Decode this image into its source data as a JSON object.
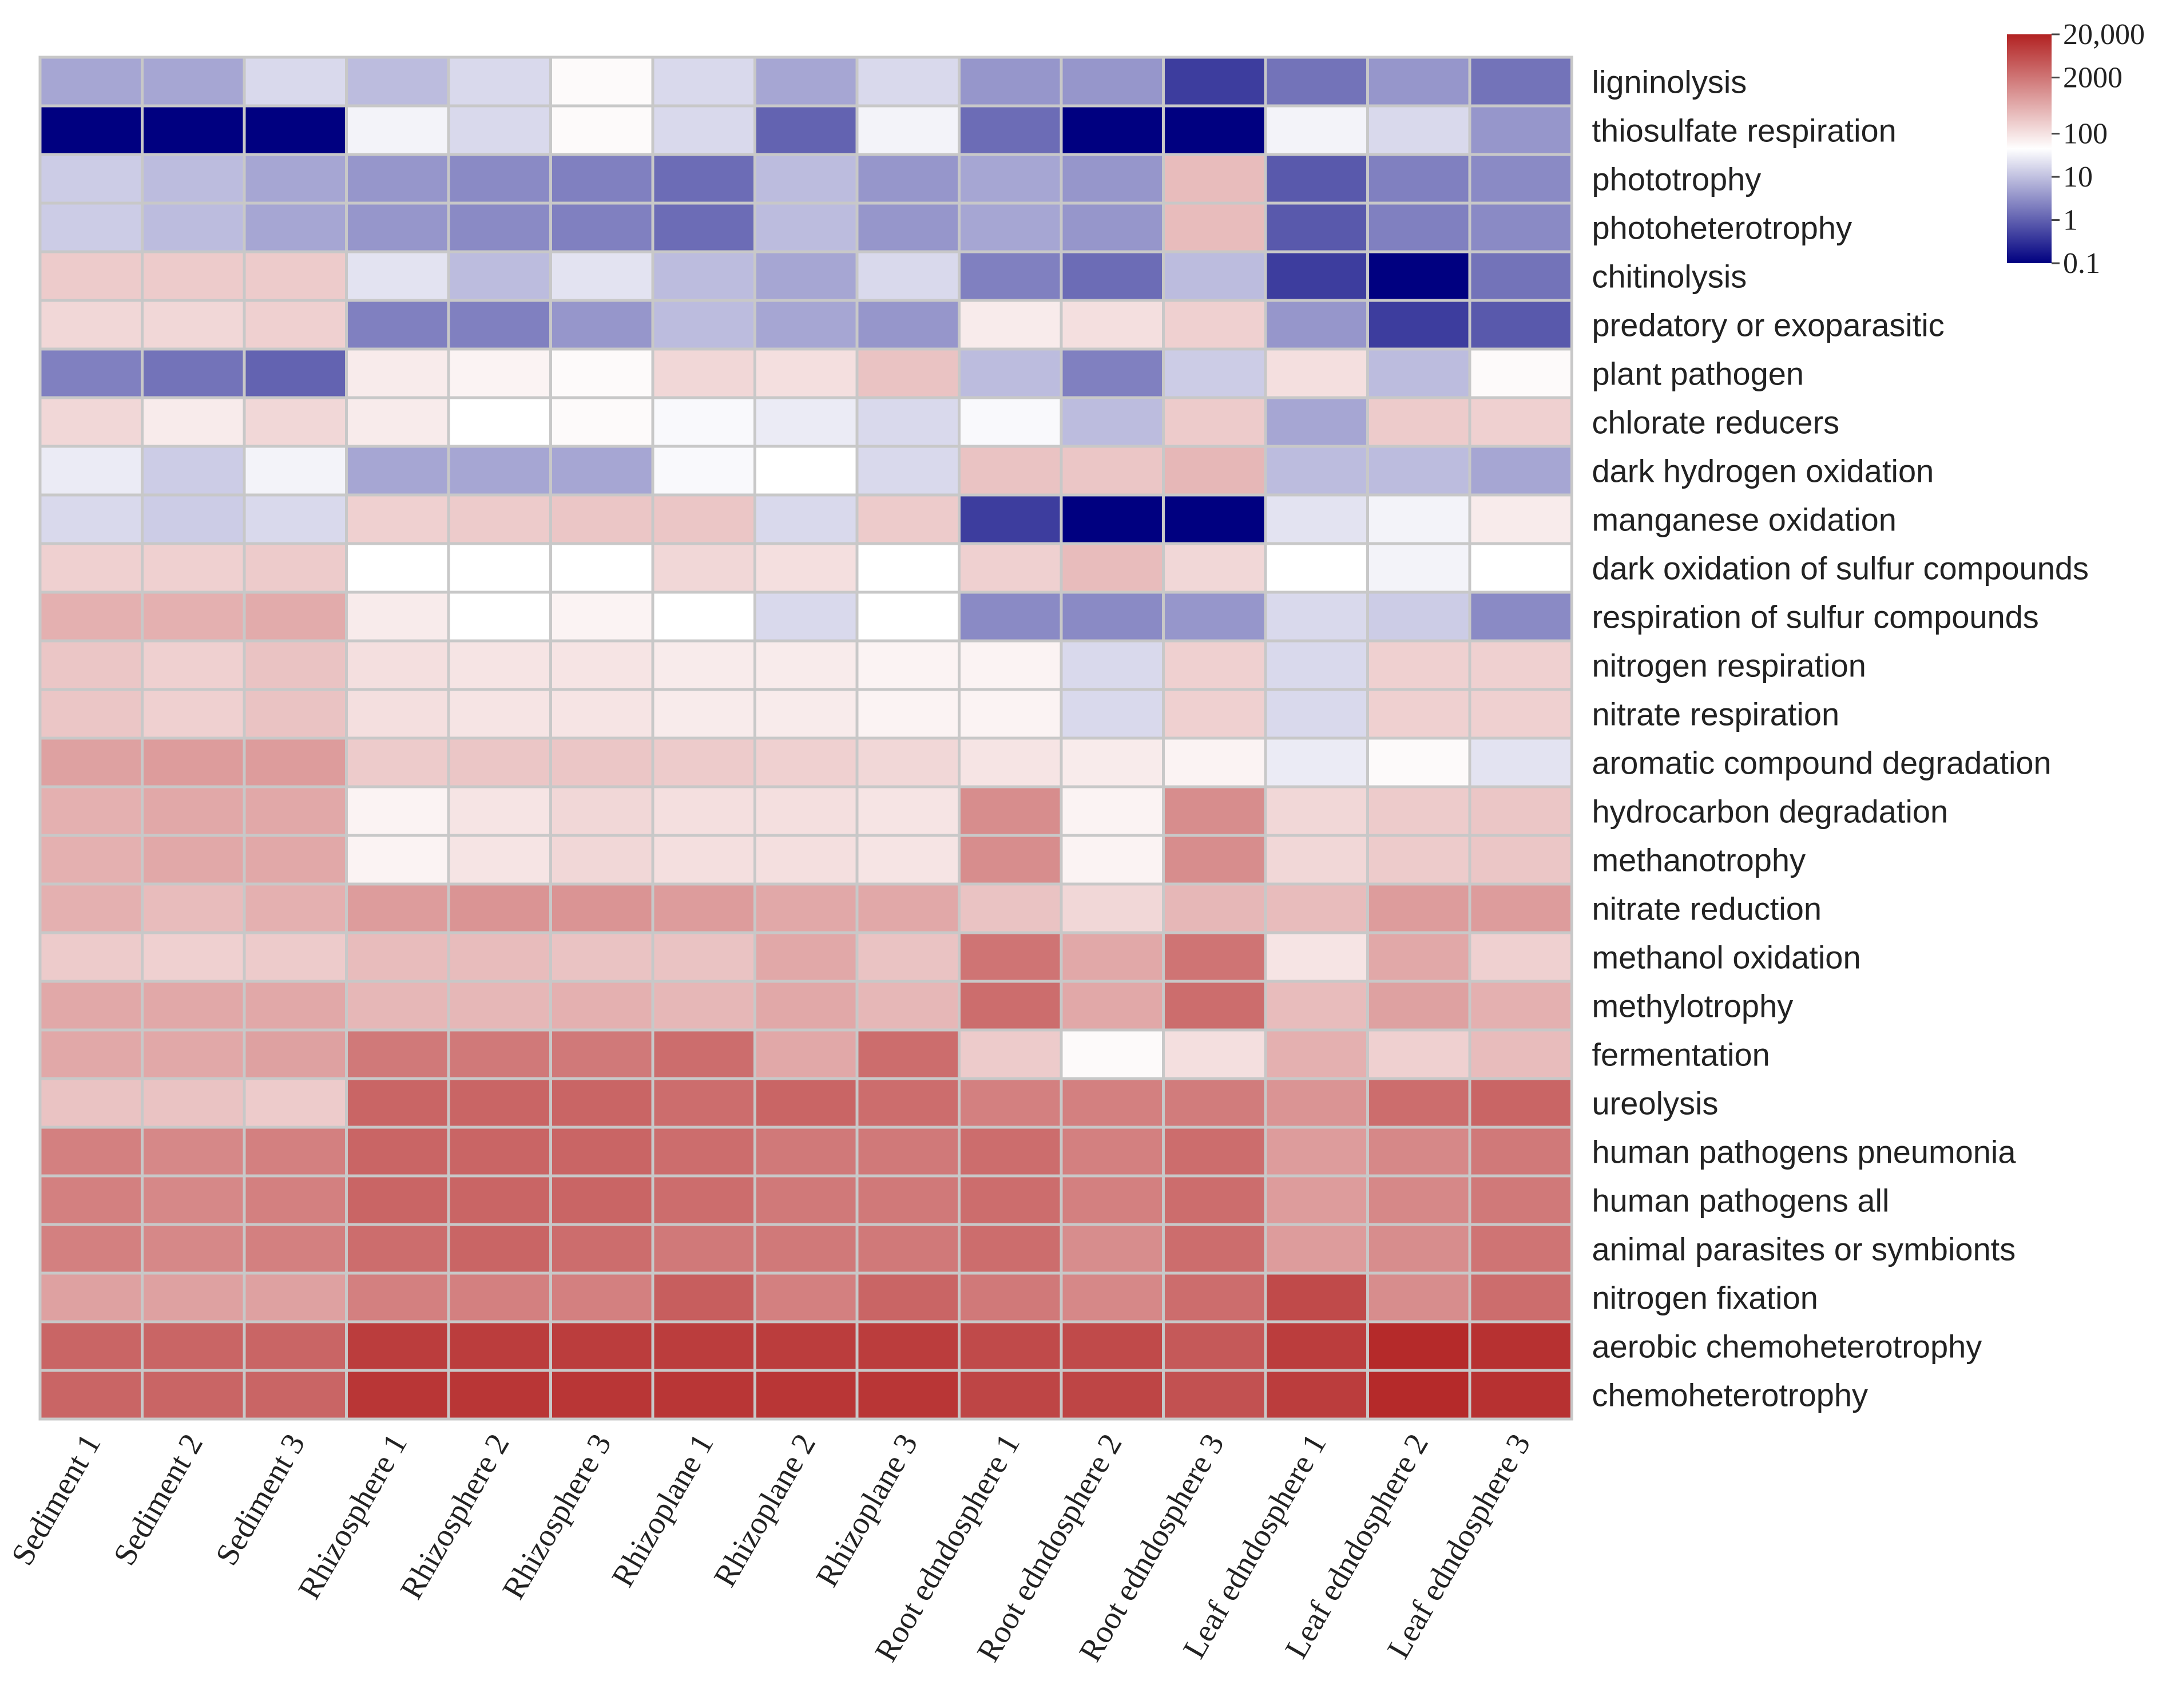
{
  "chart_data": {
    "type": "heatmap",
    "title": "",
    "color_scale": "log",
    "colors": {
      "low": "#000080",
      "mid": "#ffffff",
      "high": "#b22222",
      "grid": "#c8c8c8"
    },
    "columns": [
      "Sediment 1",
      "Sediment 2",
      "Sediment 3",
      "Rhizosphere 1",
      "Rhizosphere 2",
      "Rhizosphere 3",
      "Rhizoplane 1",
      "Rhizoplane 2",
      "Rhizoplane 3",
      "Root edndosphere 1",
      "Root edndosphere 2",
      "Root edndosphere 3",
      "Leaf edndosphere 1",
      "Leaf edndosphere 2",
      "Leaf edndosphere 3"
    ],
    "rows": [
      "ligninolysis",
      "thiosulfate respiration",
      "phototrophy",
      "photoheterotrophy",
      "chitinolysis",
      "predatory or exoparasitic",
      "plant pathogen",
      "chlorate reducers",
      "dark hydrogen oxidation",
      "manganese oxidation",
      "dark oxidation of sulfur compounds",
      "respiration of sulfur compounds",
      "nitrogen respiration",
      "nitrate respiration",
      "aromatic compound degradation",
      "hydrocarbon degradation",
      "methanotrophy",
      "nitrate reduction",
      "methanol oxidation",
      "methylotrophy",
      "fermentation",
      "ureolysis",
      "human pathogens pneumonia",
      "human pathogens all",
      "animal parasites or symbionts",
      "nitrogen fixation",
      "aerobic chemoheterotrophy",
      "chemoheterotrophy"
    ],
    "values": [
      [
        2,
        2,
        5,
        3,
        5,
        12,
        5,
        2,
        5,
        1.5,
        1.5,
        0.3,
        0.8,
        1.5,
        0.8
      ],
      [
        0.1,
        0.1,
        0.1,
        8,
        5,
        12,
        5,
        0.6,
        8,
        0.7,
        0.1,
        0.1,
        8,
        5,
        1.5
      ],
      [
        4,
        3,
        2,
        1.5,
        1.2,
        1,
        0.7,
        3,
        1.5,
        2,
        1.5,
        100,
        0.5,
        1,
        1.2
      ],
      [
        4,
        3,
        2,
        1.5,
        1.2,
        1,
        0.7,
        3,
        1.5,
        2,
        1.5,
        100,
        0.5,
        1,
        1.2
      ],
      [
        60,
        60,
        60,
        6,
        3,
        6,
        3,
        2,
        5,
        1,
        0.7,
        3,
        0.3,
        0.1,
        0.8
      ],
      [
        40,
        40,
        50,
        1,
        1,
        1.5,
        3,
        2,
        1.5,
        20,
        30,
        50,
        1.5,
        0.3,
        0.5
      ],
      [
        1,
        0.8,
        0.6,
        20,
        15,
        12,
        40,
        30,
        80,
        3,
        1,
        4,
        30,
        3,
        12
      ],
      [
        40,
        20,
        40,
        20,
        10,
        12,
        9,
        7,
        5,
        9,
        3,
        60,
        2,
        60,
        50
      ],
      [
        7,
        4,
        8,
        2,
        2,
        2,
        9,
        10,
        5,
        80,
        70,
        120,
        3,
        3,
        2
      ],
      [
        5,
        4,
        5,
        50,
        60,
        70,
        70,
        5,
        60,
        0.3,
        0.1,
        0.1,
        6,
        8,
        20
      ],
      [
        50,
        50,
        60,
        10,
        10,
        10,
        40,
        30,
        10,
        50,
        100,
        40,
        10,
        8,
        10
      ],
      [
        150,
        150,
        180,
        20,
        10,
        15,
        10,
        5,
        10,
        1.2,
        1.2,
        1.5,
        5,
        4,
        1.2
      ],
      [
        70,
        50,
        80,
        30,
        25,
        25,
        20,
        20,
        15,
        15,
        5,
        50,
        5,
        50,
        50
      ],
      [
        70,
        50,
        80,
        30,
        25,
        25,
        20,
        20,
        15,
        15,
        5,
        50,
        5,
        50,
        50
      ],
      [
        250,
        300,
        300,
        60,
        70,
        70,
        60,
        50,
        40,
        25,
        20,
        15,
        7,
        12,
        6
      ],
      [
        150,
        200,
        200,
        15,
        25,
        40,
        30,
        30,
        25,
        500,
        15,
        500,
        40,
        60,
        70
      ],
      [
        150,
        200,
        200,
        15,
        25,
        40,
        30,
        30,
        25,
        500,
        15,
        500,
        40,
        60,
        70
      ],
      [
        150,
        100,
        150,
        300,
        400,
        400,
        300,
        200,
        200,
        80,
        40,
        120,
        100,
        300,
        300
      ],
      [
        60,
        50,
        60,
        100,
        100,
        80,
        80,
        200,
        80,
        1200,
        200,
        1200,
        25,
        200,
        50
      ],
      [
        200,
        200,
        200,
        120,
        120,
        150,
        120,
        200,
        120,
        1500,
        200,
        1500,
        100,
        250,
        150
      ],
      [
        200,
        200,
        250,
        1000,
        1000,
        1000,
        1500,
        200,
        1500,
        60,
        12,
        30,
        150,
        50,
        100
      ],
      [
        80,
        80,
        60,
        2000,
        2000,
        2000,
        1500,
        2000,
        1500,
        800,
        800,
        900,
        400,
        1500,
        2000
      ],
      [
        800,
        600,
        800,
        2000,
        2000,
        2000,
        1500,
        1000,
        1000,
        1500,
        800,
        1500,
        300,
        600,
        1000
      ],
      [
        800,
        600,
        800,
        2000,
        2000,
        2000,
        1500,
        1000,
        1000,
        1500,
        800,
        1500,
        300,
        600,
        1000
      ],
      [
        800,
        600,
        800,
        1500,
        2000,
        1500,
        1000,
        1000,
        1000,
        1500,
        500,
        1500,
        300,
        500,
        1200
      ],
      [
        250,
        250,
        250,
        800,
        800,
        800,
        2500,
        800,
        2000,
        1000,
        600,
        1500,
        5000,
        500,
        1500
      ],
      [
        2000,
        2000,
        2000,
        8000,
        8000,
        8000,
        8000,
        8000,
        8000,
        5000,
        5000,
        3000,
        8000,
        15000,
        12000
      ],
      [
        2000,
        2000,
        2000,
        10000,
        10000,
        10000,
        10000,
        10000,
        10000,
        6000,
        6000,
        4000,
        8000,
        15000,
        12000
      ]
    ],
    "legend": {
      "position": "top-right",
      "range": [
        0.1,
        20000
      ],
      "ticks": [
        {
          "value": 20000,
          "label": "20,000"
        },
        {
          "value": 2000,
          "label": "2000"
        },
        {
          "value": 100,
          "label": "100"
        },
        {
          "value": 10,
          "label": "10"
        },
        {
          "value": 1,
          "label": "1"
        },
        {
          "value": 0.1,
          "label": "0.1"
        }
      ]
    }
  }
}
